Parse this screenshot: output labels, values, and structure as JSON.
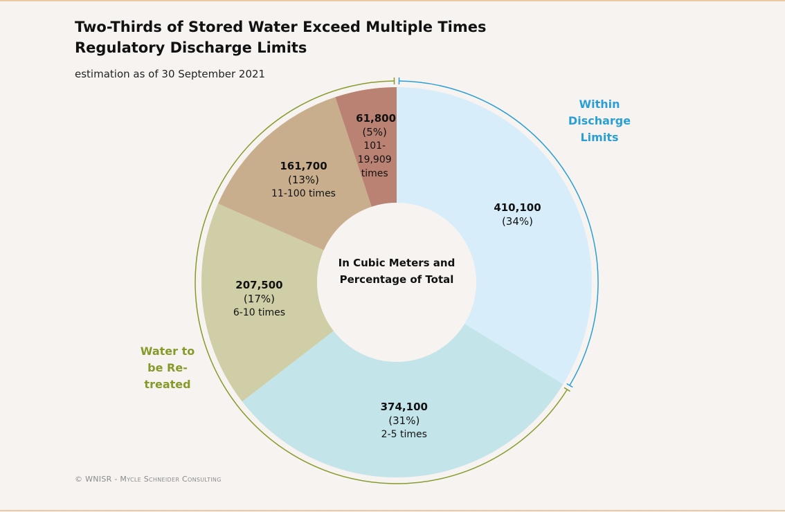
{
  "chart_data": {
    "type": "pie",
    "title": "Two-Thirds of Stored Water Exceed Multiple Times Regulatory Discharge Limits",
    "subtitle": "estimation as of 30 September 2021",
    "center_label": "In Cubic Meters and Percentage of Total",
    "credit": "© WNISR - Mycle Schneider Consulting",
    "categories": [
      null,
      "2-5 times",
      "6-10 times",
      "11-100 times",
      "101-19,909 times"
    ],
    "values": [
      410100,
      374100,
      207500,
      161700,
      61800
    ],
    "value_labels": [
      "410,100",
      "374,100",
      "207,500",
      "161,700",
      "61,800"
    ],
    "percent_labels": [
      "(34%)",
      "(31%)",
      "(17%)",
      "(13%)",
      "(5%)"
    ],
    "colors": [
      "#d7edfa",
      "#c3e4e9",
      "#cfcea7",
      "#c9ae8d",
      "#ba8272"
    ],
    "groups": [
      {
        "name": "Within Discharge Limits",
        "color": "#2a9fd6",
        "slices": [
          0
        ]
      },
      {
        "name": "Water to be Re-treated",
        "color": "#869a2a",
        "slices": [
          1,
          2,
          3,
          4
        ]
      }
    ]
  }
}
